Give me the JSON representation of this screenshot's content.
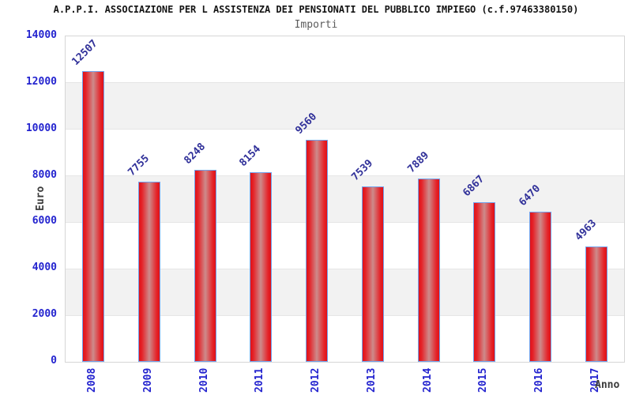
{
  "chart_data": {
    "type": "bar",
    "title": "A.P.P.I. ASSOCIAZIONE PER L ASSISTENZA DEI PENSIONATI DEL PUBBLICO IMPIEGO (c.f.97463380150)",
    "subtitle": "Importi",
    "xlabel": "Anno",
    "ylabel": "Euro",
    "categories": [
      "2008",
      "2009",
      "2010",
      "2011",
      "2012",
      "2013",
      "2014",
      "2015",
      "2016",
      "2017"
    ],
    "values": [
      12507,
      7755,
      8248,
      8154,
      9560,
      7539,
      7889,
      6867,
      6470,
      4963
    ],
    "ylim": [
      0,
      14000
    ],
    "yticks": [
      0,
      2000,
      4000,
      6000,
      8000,
      10000,
      12000,
      14000
    ],
    "grid": "horizontal gridlines every 2000 with alternating white/gray bands",
    "legend": "none",
    "value_labels": "above each bar, rotated 45 degrees",
    "colors": {
      "bar_edge": "#df1218",
      "bar_center": "#cd8b8b",
      "bar_border": "#72a2ec",
      "tick_label": "#2424cf",
      "value_label": "#303099",
      "band_gray": "#f2f2f2",
      "plot_border": "#d6d6d6",
      "title_text": "#141414",
      "subtitle_text": "#5c5c5c",
      "axis_title_text": "#3a3a3a"
    }
  }
}
